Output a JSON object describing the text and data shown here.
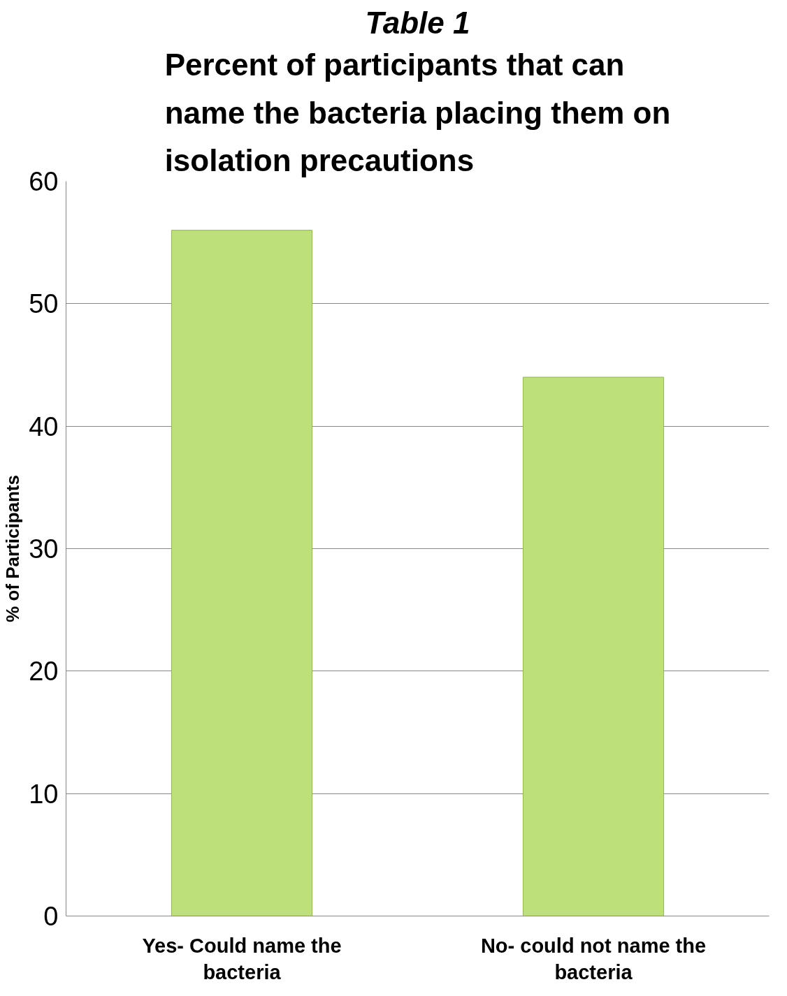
{
  "chart_data": {
    "type": "bar",
    "title": "Table 1",
    "subtitle": "Percent of participants that can name the bacteria placing them on isolation precautions",
    "ylabel": "% of Participants",
    "categories": [
      "Yes- Could name the bacteria",
      "No- could not name the bacteria"
    ],
    "values": [
      56,
      44
    ],
    "color": "#bde07a",
    "ylim": [
      0,
      60
    ],
    "yticks": [
      0,
      10,
      20,
      30,
      40,
      50,
      60
    ],
    "grid": "y"
  }
}
